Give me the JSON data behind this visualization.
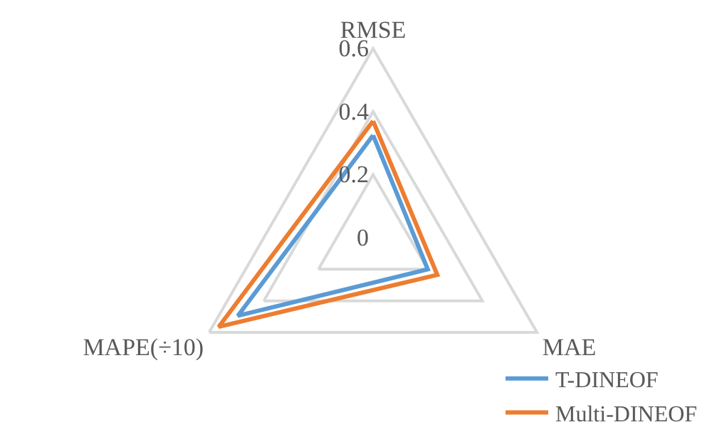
{
  "chart_data": {
    "type": "radar",
    "categories": [
      "RMSE",
      "MAE",
      "MAPE(÷10)"
    ],
    "series": [
      {
        "name": "T-DINEOF",
        "color": "#5b9bd5",
        "values": [
          0.325,
          0.2,
          0.495
        ]
      },
      {
        "name": "Multi-DINEOF",
        "color": "#ed7d31",
        "values": [
          0.37,
          0.235,
          0.565
        ]
      }
    ],
    "ylim": [
      0,
      0.6
    ],
    "yticks": [
      0,
      0.2,
      0.4,
      0.6
    ],
    "grid": true,
    "legend": "bottom right",
    "marker": "none",
    "line_style": "solid"
  }
}
